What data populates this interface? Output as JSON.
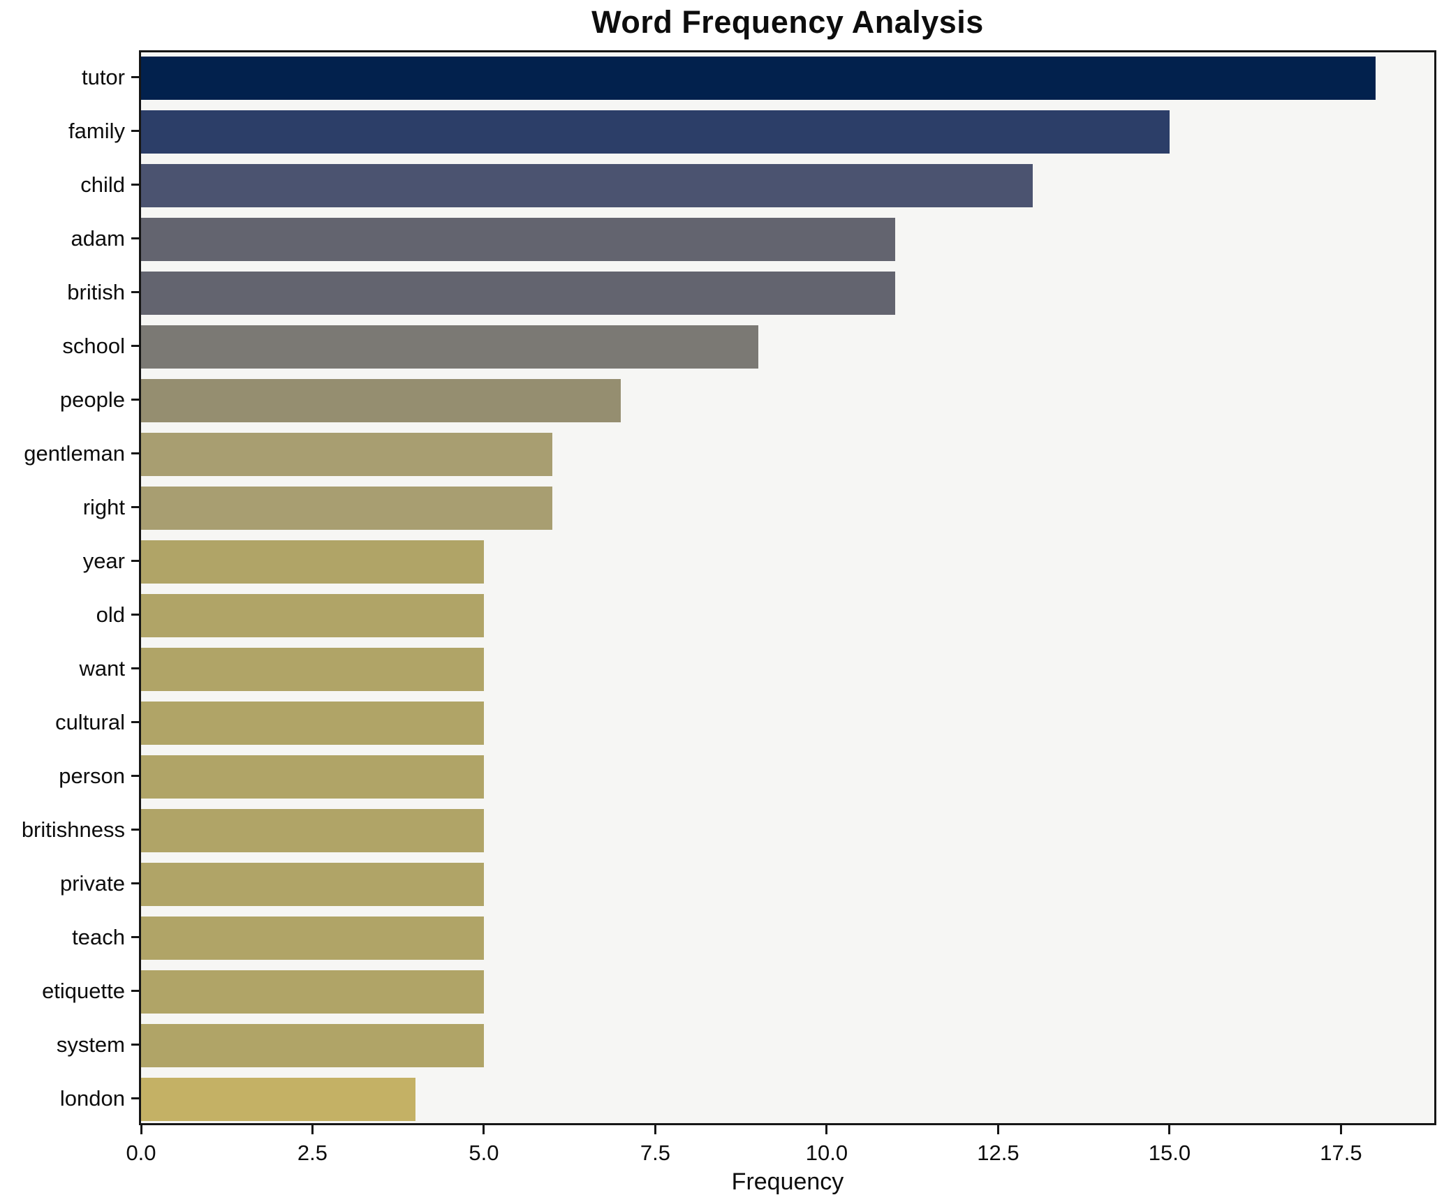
{
  "title": "Word Frequency Analysis",
  "chart_data": {
    "type": "bar",
    "orientation": "horizontal",
    "title": "Word Frequency Analysis",
    "xlabel": "Frequency",
    "ylabel": "",
    "xlim": [
      0,
      18.86
    ],
    "x_ticks": [
      0,
      2.5,
      5,
      7.5,
      10,
      12.5,
      15,
      17.5
    ],
    "x_tick_labels": [
      "0.0",
      "2.5",
      "5.0",
      "7.5",
      "10.0",
      "12.5",
      "15.0",
      "17.5"
    ],
    "grid": false,
    "legend": false,
    "categories": [
      "tutor",
      "family",
      "child",
      "adam",
      "british",
      "school",
      "people",
      "gentleman",
      "right",
      "year",
      "old",
      "want",
      "cultural",
      "person",
      "britishness",
      "private",
      "teach",
      "etiquette",
      "system",
      "london"
    ],
    "values": [
      18,
      15,
      13,
      11,
      11,
      9,
      7,
      6,
      6,
      5,
      5,
      5,
      5,
      5,
      5,
      5,
      5,
      5,
      5,
      4
    ],
    "bar_colors": [
      "#02214d",
      "#2c3e68",
      "#4b5370",
      "#63646f",
      "#63646f",
      "#7b7974",
      "#958e70",
      "#a89e71",
      "#a89e71",
      "#b0a467",
      "#b0a467",
      "#b0a467",
      "#b0a467",
      "#b0a467",
      "#b0a467",
      "#b0a467",
      "#b0a467",
      "#b0a467",
      "#b0a467",
      "#c4b165"
    ],
    "colors": {
      "plot_background": "#f6f6f4",
      "figure_background": "#ffffff",
      "spine": "#161616",
      "text": "#0d0d0d"
    }
  }
}
